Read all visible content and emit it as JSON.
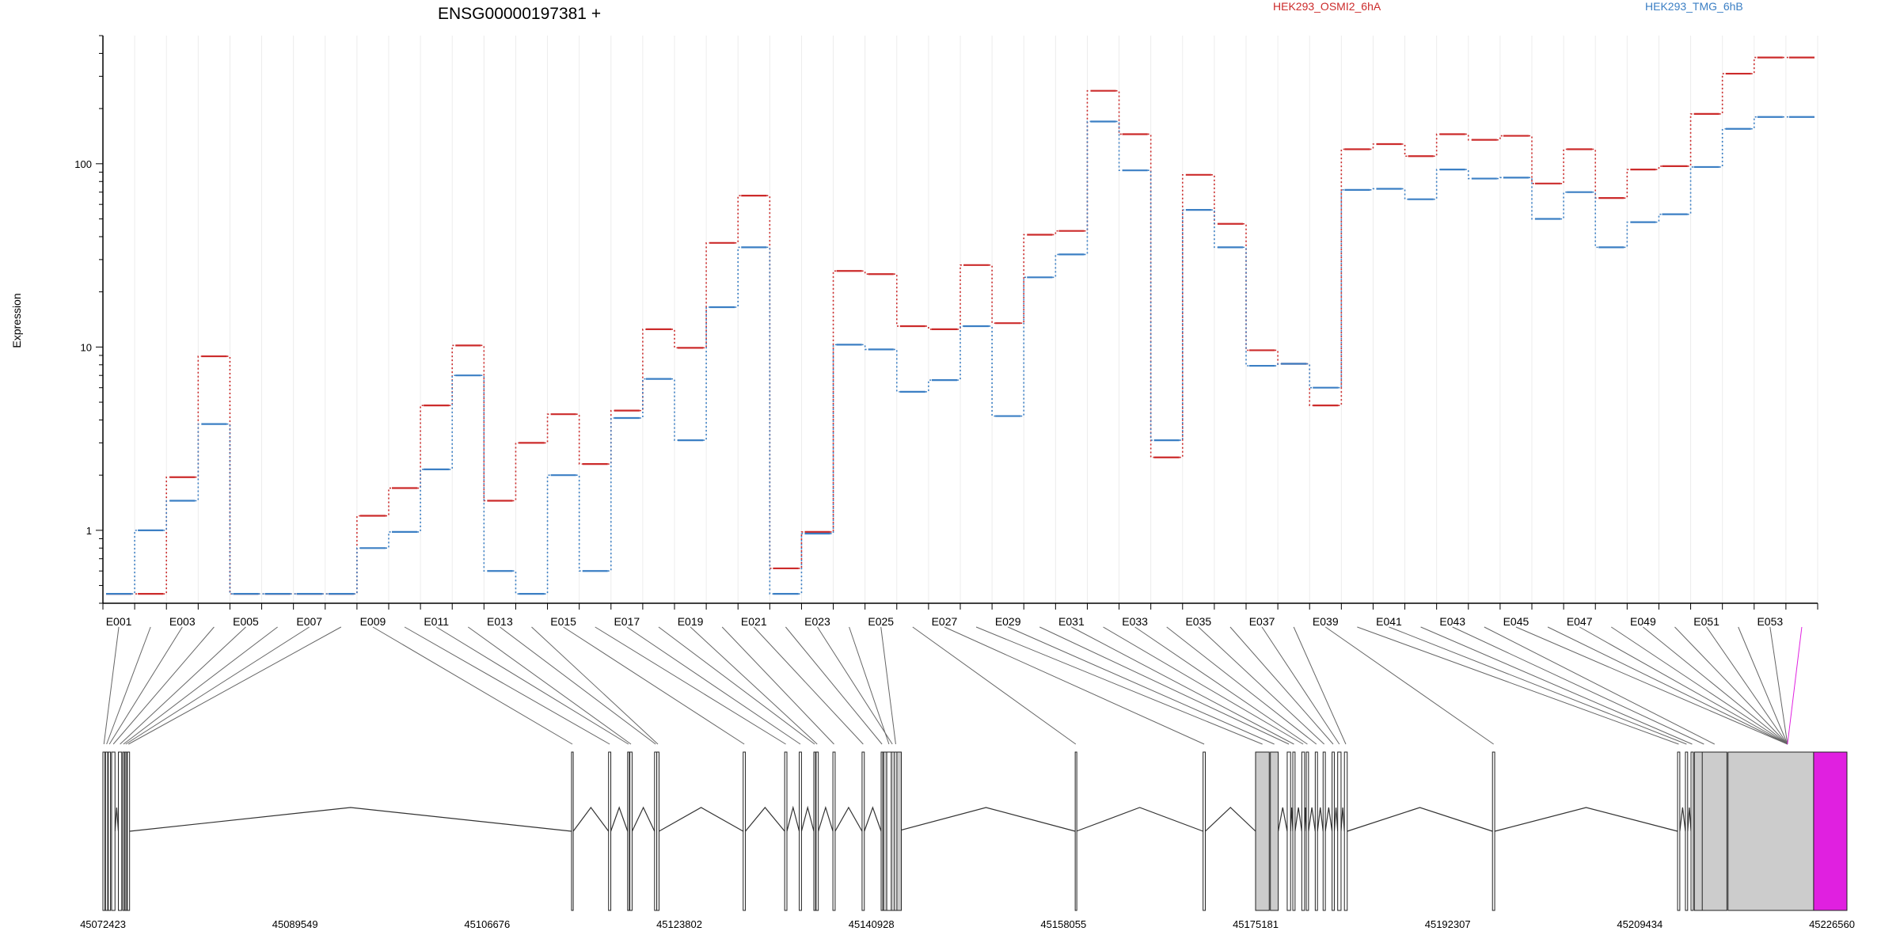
{
  "chart_data": {
    "type": "line",
    "title": "ENSG00000197381 +",
    "ylabel": "Expression",
    "xlabel": "",
    "y_scale": "log",
    "ylim": [
      0.4,
      500
    ],
    "y_ticks": [
      1,
      10,
      100
    ],
    "y_tick_labels": [
      "1",
      "10",
      "100"
    ],
    "grid": "vertical light gray lines at exon boundaries",
    "legend_position": "top, above plot",
    "exons": [
      "E001",
      "E002",
      "E003",
      "E004",
      "E005",
      "E006",
      "E007",
      "E008",
      "E009",
      "E010",
      "E011",
      "E012",
      "E013",
      "E014",
      "E015",
      "E016",
      "E017",
      "E018",
      "E019",
      "E020",
      "E021",
      "E022",
      "E023",
      "E024",
      "E025",
      "E026",
      "E027",
      "E028",
      "E029",
      "E030",
      "E031",
      "E032",
      "E033",
      "E034",
      "E035",
      "E036",
      "E037",
      "E038",
      "E039",
      "E040",
      "E041",
      "E042",
      "E043",
      "E044",
      "E045",
      "E046",
      "E047",
      "E048",
      "E049",
      "E050",
      "E051",
      "E052",
      "E053",
      "E054"
    ],
    "exon_tick_labels": [
      "E001",
      "E003",
      "E005",
      "E007",
      "E009",
      "E011",
      "E013",
      "E015",
      "E017",
      "E019",
      "E021",
      "E023",
      "E025",
      "E027",
      "E029",
      "E031",
      "E033",
      "E035",
      "E037",
      "E039",
      "E041",
      "E043",
      "E045",
      "E047",
      "E049",
      "E051",
      "E053"
    ],
    "series": [
      {
        "name": "HEK293_OSMI2_6hA",
        "color": "#cc2b2b",
        "values": [
          0.45,
          0.45,
          1.95,
          8.9,
          0.45,
          0.45,
          0.45,
          0.45,
          1.2,
          1.7,
          4.8,
          10.2,
          1.45,
          3.0,
          4.3,
          2.3,
          4.5,
          12.5,
          9.9,
          37,
          67,
          0.62,
          0.98,
          26,
          25,
          13,
          12.5,
          28,
          13.5,
          41,
          43,
          250,
          145,
          2.5,
          87,
          47,
          9.6,
          8.1,
          4.8,
          120,
          128,
          110,
          145,
          135,
          142,
          78,
          120,
          65,
          93,
          97,
          187,
          310,
          380,
          380
        ]
      },
      {
        "name": "HEK293_TMG_6hB",
        "color": "#3b7fc4",
        "values": [
          0.45,
          1.0,
          1.45,
          3.8,
          0.45,
          0.45,
          0.45,
          0.45,
          0.8,
          0.98,
          2.15,
          7.0,
          0.6,
          0.45,
          2.0,
          0.6,
          4.1,
          6.7,
          3.1,
          16.5,
          35,
          0.45,
          0.96,
          10.3,
          9.7,
          5.7,
          6.6,
          13,
          4.2,
          24,
          32,
          170,
          92,
          3.1,
          56,
          35,
          7.9,
          8.1,
          6.0,
          72,
          73,
          64,
          93,
          83,
          84,
          50,
          70,
          35,
          48,
          53,
          96,
          155,
          180,
          180
        ]
      }
    ],
    "gene_model": {
      "coordinate_labels": [
        "45072423",
        "45089549",
        "45106676",
        "45123802",
        "45140928",
        "45158055",
        "45175181",
        "45192307",
        "45209434",
        "45226560"
      ],
      "exon_starts": [
        45072423,
        45072650,
        45072900,
        45073200,
        45073800,
        45074200,
        45074400,
        45074600,
        45114200,
        45117500,
        45119200,
        45119400,
        45121600,
        45121800,
        45129500,
        45133200,
        45134500,
        45135800,
        45136000,
        45137500,
        45140100,
        45141800,
        45142000,
        45142300,
        45143000,
        45159100,
        45170500,
        45175181,
        45176500,
        45178000,
        45178500,
        45179300,
        45179700,
        45180500,
        45181200,
        45182000,
        45182500,
        45183100,
        45196300,
        45212800,
        45213500,
        45214000,
        45214300,
        45215000,
        45217300
      ],
      "exon_ends": [
        45072600,
        45072850,
        45073100,
        45073500,
        45074100,
        45074300,
        45074500,
        45074800,
        45114350,
        45117700,
        45119350,
        45119600,
        45121800,
        45122000,
        45129700,
        45133400,
        45134700,
        45135950,
        45136200,
        45137700,
        45140300,
        45141950,
        45143600,
        45142700,
        45143200,
        45159200,
        45170700,
        45176400,
        45177200,
        45178300,
        45178700,
        45179550,
        45179900,
        45180700,
        45181400,
        45182200,
        45182800,
        45183350,
        45196500,
        45213000,
        45213700,
        45214200,
        45216000,
        45217200,
        45227900
      ],
      "highlight_color": "#e020e0"
    }
  }
}
